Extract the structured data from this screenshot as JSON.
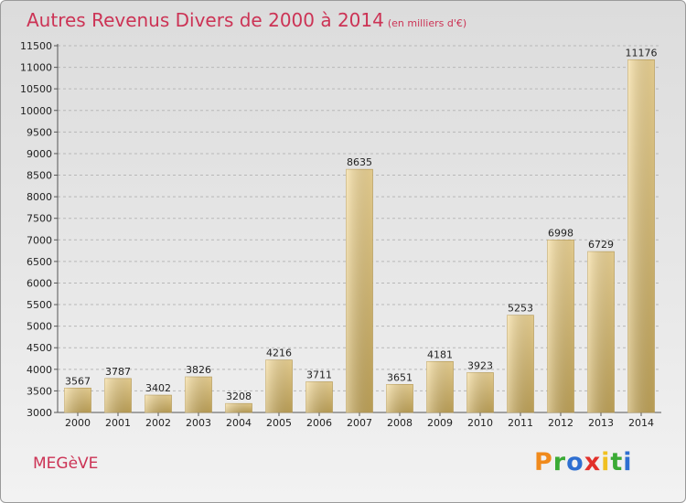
{
  "header": {
    "title": "Autres Revenus Divers de 2000 à 2014",
    "subtitle": "(en milliers d'€)"
  },
  "footer": {
    "city": "MEGèVE",
    "logo_letters": [
      "P",
      "r",
      "o",
      "x",
      "i",
      "t",
      "i"
    ],
    "logo_colors": [
      "#f08a1c",
      "#3aaa35",
      "#2e6fd1",
      "#e2302a",
      "#f0c020",
      "#3aaa35",
      "#2e6fd1"
    ]
  },
  "chart_data": {
    "type": "bar",
    "title": "Autres Revenus Divers de 2000 à 2014",
    "subtitle": "(en milliers d'€)",
    "categories": [
      "2000",
      "2001",
      "2002",
      "2003",
      "2004",
      "2005",
      "2006",
      "2007",
      "2008",
      "2009",
      "2010",
      "2011",
      "2012",
      "2013",
      "2014"
    ],
    "values": [
      3567,
      3787,
      3402,
      3826,
      3208,
      4216,
      3711,
      8635,
      3651,
      4181,
      3923,
      5253,
      6998,
      6729,
      11176
    ],
    "ylim": [
      3000,
      11500
    ],
    "yticks": [
      3000,
      3500,
      4000,
      4500,
      5000,
      5500,
      6000,
      6500,
      7000,
      7500,
      8000,
      8500,
      9000,
      9500,
      10000,
      10500,
      11000,
      11500
    ],
    "grid": true,
    "bar_color": "#e8c878"
  }
}
